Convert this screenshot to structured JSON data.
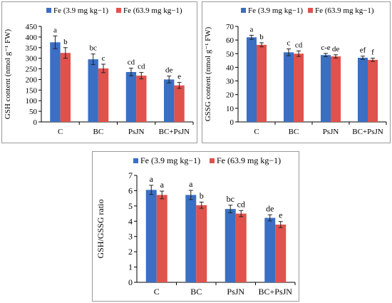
{
  "colors": {
    "fe_low": "#3a6fc4",
    "fe_high": "#e0524c",
    "axis": "#000000"
  },
  "chart_data": [
    {
      "type": "bar",
      "ylabel": "GSH content (nmol g⁻¹ FW)",
      "ylim": [
        0,
        450
      ],
      "yticks": [
        0,
        50,
        100,
        150,
        200,
        250,
        300,
        350,
        400,
        450
      ],
      "categories": [
        "C",
        "BC",
        "PsJN",
        "BC+PsJN"
      ],
      "legend": "top",
      "series": [
        {
          "name": "Fe (3.9 mg kg−1)",
          "values": [
            375,
            295,
            235,
            200
          ],
          "errors": [
            30,
            25,
            18,
            16
          ],
          "letters": [
            "a",
            "bc",
            "cd",
            "de"
          ]
        },
        {
          "name": "Fe (63.9 mg kg−1)",
          "values": [
            325,
            252,
            218,
            172
          ],
          "errors": [
            25,
            20,
            15,
            14
          ],
          "letters": [
            "b",
            "c",
            "cd",
            "e"
          ]
        }
      ]
    },
    {
      "type": "bar",
      "ylabel": "GSSG content (nmol g⁻¹ FW)",
      "ylim": [
        0,
        70
      ],
      "yticks": [
        0,
        10,
        20,
        30,
        40,
        50,
        60,
        70
      ],
      "categories": [
        "C",
        "BC",
        "PsJN",
        "BC+PsJN"
      ],
      "legend": "top",
      "series": [
        {
          "name": "Fe (3.9 mg kg−1)",
          "values": [
            62,
            51,
            49,
            47
          ],
          "errors": [
            1.5,
            2.5,
            1.2,
            1.2
          ],
          "letters": [
            "a",
            "c",
            "c-e",
            "ef"
          ]
        },
        {
          "name": "Fe (63.9 mg kg−1)",
          "values": [
            56.5,
            50,
            48,
            45.5
          ],
          "errors": [
            1.5,
            2,
            1.2,
            1.2
          ],
          "letters": [
            "b",
            "cd",
            "de",
            "f"
          ]
        }
      ]
    },
    {
      "type": "bar",
      "ylabel": "GSH/GSSG ratio",
      "ylim": [
        0,
        7
      ],
      "yticks": [
        0,
        1,
        2,
        3,
        4,
        5,
        6,
        7
      ],
      "categories": [
        "C",
        "BC",
        "PsJN",
        "BC+PsJN"
      ],
      "legend": "top",
      "series": [
        {
          "name": "Fe (3.9 mg kg−1)",
          "values": [
            6.05,
            5.72,
            4.8,
            4.22
          ],
          "errors": [
            0.3,
            0.3,
            0.25,
            0.2
          ],
          "letters": [
            "a",
            "a",
            "bc",
            "de"
          ]
        },
        {
          "name": "Fe (63.9 mg kg−1)",
          "values": [
            5.72,
            5.05,
            4.5,
            3.78
          ],
          "errors": [
            0.25,
            0.2,
            0.2,
            0.2
          ],
          "letters": [
            "a",
            "b",
            "cd",
            "e"
          ]
        }
      ]
    }
  ]
}
